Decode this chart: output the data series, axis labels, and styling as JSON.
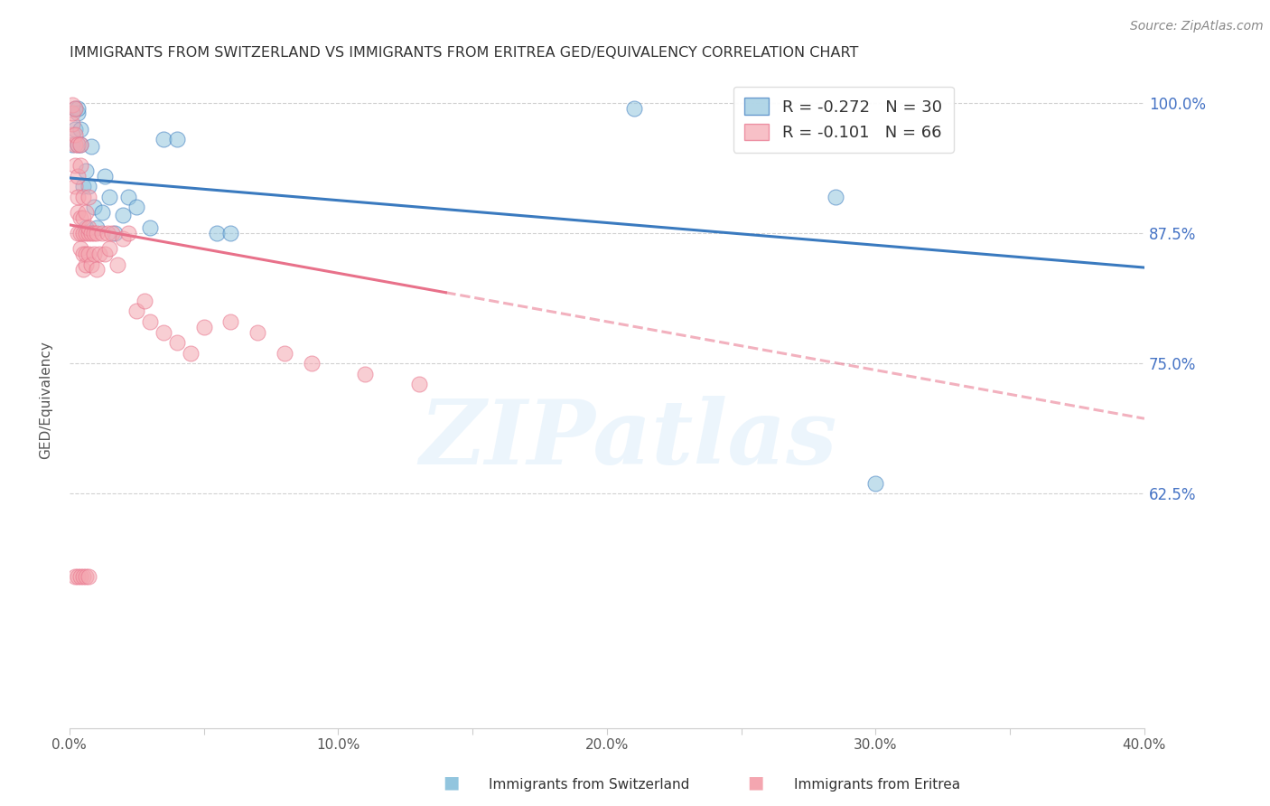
{
  "title": "IMMIGRANTS FROM SWITZERLAND VS IMMIGRANTS FROM ERITREA GED/EQUIVALENCY CORRELATION CHART",
  "source": "Source: ZipAtlas.com",
  "ylabel": "GED/Equivalency",
  "xlabel": "",
  "xlim": [
    0.0,
    0.4
  ],
  "ylim": [
    0.4,
    1.03
  ],
  "xticks": [
    0.0,
    0.05,
    0.1,
    0.15,
    0.2,
    0.25,
    0.3,
    0.35,
    0.4
  ],
  "xticklabels": [
    "0.0%",
    "",
    "10.0%",
    "",
    "20.0%",
    "",
    "30.0%",
    "",
    "40.0%"
  ],
  "yticks": [
    0.625,
    0.75,
    0.875,
    1.0
  ],
  "yticklabels": [
    "62.5%",
    "75.0%",
    "87.5%",
    "100.0%"
  ],
  "grid_color": "#cccccc",
  "background_color": "#ffffff",
  "legend_r_swiss": "-0.272",
  "legend_n_swiss": "30",
  "legend_r_eritrea": "-0.101",
  "legend_n_eritrea": "66",
  "swiss_color": "#92c5de",
  "eritrea_color": "#f4a6b0",
  "swiss_line_color": "#3a7abf",
  "eritrea_line_color": "#e8718a",
  "watermark": "ZIPatlas",
  "swiss_line_x0": 0.0,
  "swiss_line_y0": 0.928,
  "swiss_line_x1": 0.4,
  "swiss_line_y1": 0.842,
  "eritrea_line_solid_x0": 0.0,
  "eritrea_line_solid_y0": 0.883,
  "eritrea_line_solid_x1": 0.14,
  "eritrea_line_solid_y1": 0.818,
  "eritrea_line_dashed_x0": 0.14,
  "eritrea_line_dashed_y0": 0.818,
  "eritrea_line_dashed_x1": 0.4,
  "eritrea_line_dashed_y1": 0.697,
  "swiss_points_x": [
    0.001,
    0.002,
    0.002,
    0.003,
    0.003,
    0.003,
    0.004,
    0.004,
    0.005,
    0.006,
    0.006,
    0.007,
    0.008,
    0.009,
    0.01,
    0.012,
    0.013,
    0.015,
    0.017,
    0.02,
    0.022,
    0.025,
    0.03,
    0.035,
    0.04,
    0.055,
    0.06,
    0.21,
    0.285,
    0.3
  ],
  "swiss_points_y": [
    0.96,
    0.975,
    0.995,
    0.96,
    0.99,
    0.995,
    0.975,
    0.96,
    0.92,
    0.935,
    0.88,
    0.92,
    0.958,
    0.9,
    0.88,
    0.895,
    0.93,
    0.91,
    0.875,
    0.892,
    0.91,
    0.9,
    0.88,
    0.965,
    0.965,
    0.875,
    0.875,
    0.995,
    0.91,
    0.635
  ],
  "eritrea_points_x": [
    0.001,
    0.001,
    0.001,
    0.001,
    0.002,
    0.002,
    0.002,
    0.002,
    0.002,
    0.003,
    0.003,
    0.003,
    0.003,
    0.003,
    0.004,
    0.004,
    0.004,
    0.004,
    0.004,
    0.005,
    0.005,
    0.005,
    0.005,
    0.005,
    0.006,
    0.006,
    0.006,
    0.006,
    0.007,
    0.007,
    0.007,
    0.007,
    0.008,
    0.008,
    0.009,
    0.009,
    0.01,
    0.01,
    0.011,
    0.012,
    0.013,
    0.014,
    0.015,
    0.016,
    0.018,
    0.02,
    0.022,
    0.025,
    0.028,
    0.03,
    0.035,
    0.04,
    0.045,
    0.05,
    0.06,
    0.07,
    0.08,
    0.09,
    0.11,
    0.13,
    0.002,
    0.003,
    0.004,
    0.005,
    0.006,
    0.007
  ],
  "eritrea_points_y": [
    0.97,
    0.98,
    0.99,
    0.998,
    0.92,
    0.94,
    0.96,
    0.97,
    0.995,
    0.875,
    0.895,
    0.91,
    0.93,
    0.96,
    0.86,
    0.875,
    0.89,
    0.94,
    0.96,
    0.84,
    0.855,
    0.875,
    0.89,
    0.91,
    0.845,
    0.855,
    0.875,
    0.895,
    0.855,
    0.875,
    0.88,
    0.91,
    0.845,
    0.875,
    0.855,
    0.875,
    0.84,
    0.875,
    0.855,
    0.875,
    0.855,
    0.875,
    0.86,
    0.875,
    0.845,
    0.87,
    0.875,
    0.8,
    0.81,
    0.79,
    0.78,
    0.77,
    0.76,
    0.785,
    0.79,
    0.78,
    0.76,
    0.75,
    0.74,
    0.73,
    0.545,
    0.545,
    0.545,
    0.545,
    0.545,
    0.545
  ]
}
